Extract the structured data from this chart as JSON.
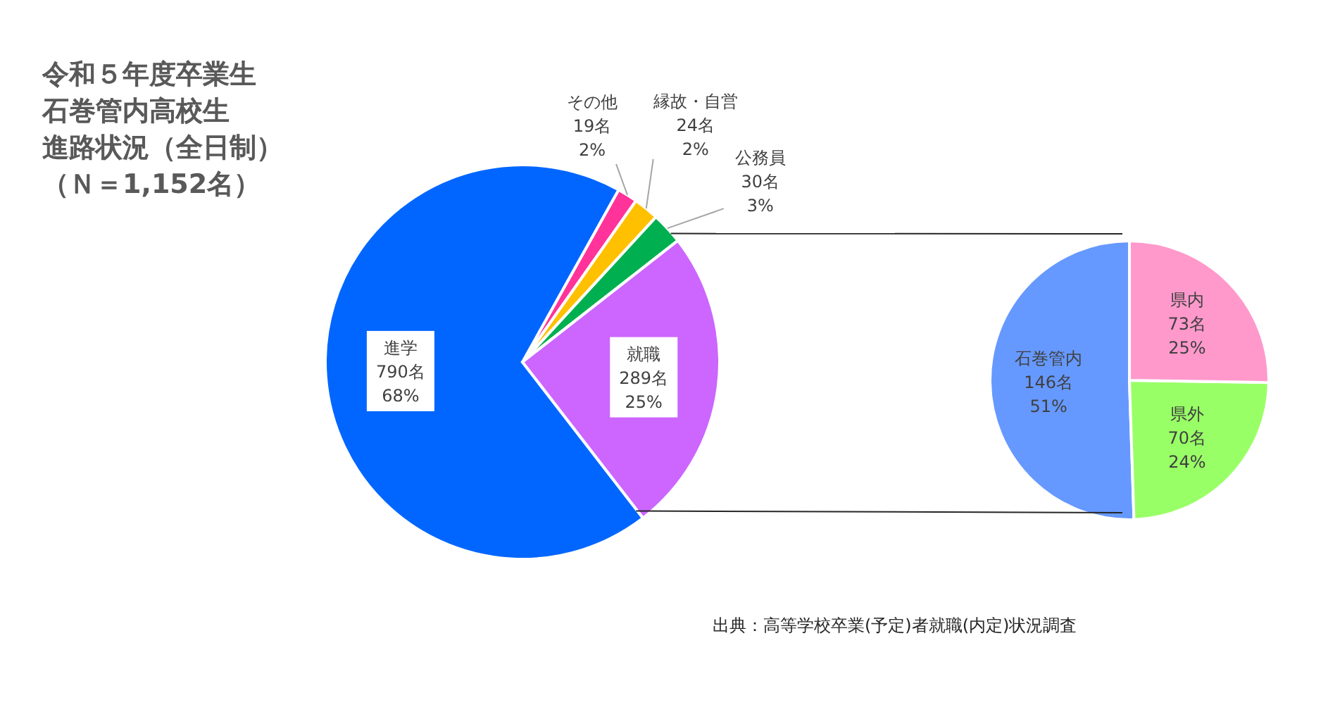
{
  "chart_data": [
    {
      "type": "pie",
      "title": "令和５年度卒業生",
      "subtitle": "石巻管内高校生",
      "categories": [
        "公務員",
        "縁故・自営",
        "その他",
        "進学",
        "就職"
      ],
      "values": [
        30,
        24,
        19,
        790,
        289
      ],
      "colors": [
        "#00b050",
        "#ffc000",
        "#ff3399",
        "#0066ff",
        "#cc66ff"
      ],
      "value_labels": [
        "30名\n3%",
        "24名\n2%",
        "19名\n2%",
        "790名\n68%",
        "289名\n25%"
      ],
      "annotations": [
        "進路状況（全日制）",
        "（Ｎ＝1,152名）",
        "出典：高等学校卒業(予定)者就職(内定)状況調査"
      ]
    },
    {
      "type": "pie",
      "categories": [
        "石巻管内",
        "県外",
        "県内"
      ],
      "values": [
        146,
        70,
        73
      ],
      "colors": [
        "#6699ff",
        "#99ff66",
        "#ff99cc"
      ],
      "value_labels": [
        "146名\n51%",
        "70名\n24%",
        "73名\n25%"
      ]
    }
  ]
}
